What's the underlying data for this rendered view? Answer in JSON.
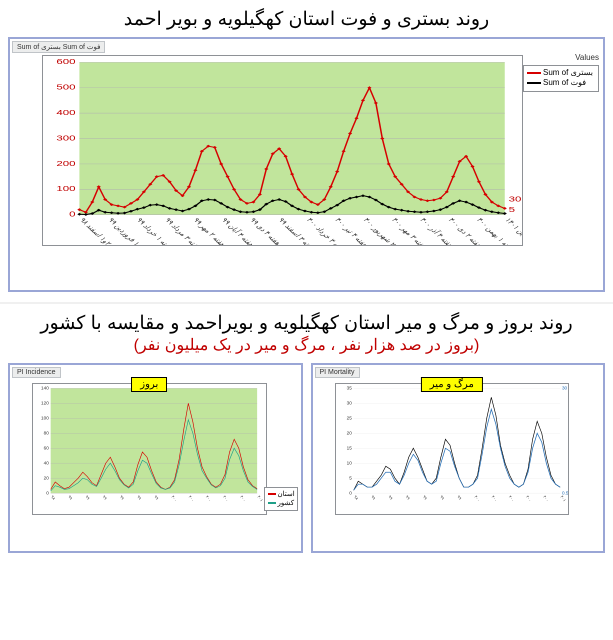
{
  "top": {
    "title": "روند بستری و فوت استان کهگیلویه و بویر احمد",
    "tab_text": "Sum of بستری  Sum of فوت",
    "values_label": "Values",
    "bg_color": "#c1e59c",
    "grid_color": "#b0b0b0",
    "y_left": {
      "min": 0,
      "max": 600,
      "ticks": [
        0,
        100,
        200,
        300,
        400,
        500,
        600
      ],
      "color": "#c00000",
      "fontsize": 9
    },
    "y_right": {
      "labels": [
        "5",
        "30"
      ],
      "positions": [
        0.03,
        0.1
      ],
      "color": "#c00000",
      "fontsize": 9
    },
    "x_labels": [
      "هفته ۲و۱ اسفند ۹۸",
      "هفته ۱ فروردین ۹۹",
      "هفته ۱ خرداد ۹۹",
      "هفته ۳ مرداد ۹۹",
      "هفته ۲ مهر ۹۹",
      "هفته ۴ آبان ۹۹",
      "هفته ۴ دی ۹۹",
      "هفته ۳ اسفند ۹۹",
      "هفته ۳ خرداد ۴۰۰",
      "هفته ۴ تیر ۴۰۰",
      "هفته ۲ شهریور ۴۰۰",
      "هفته ۳ مهر ۴۰۰",
      "هفته ۴ آذر ۴۰۰",
      "هفته ۲ دی ۴۰۰",
      "هفته ۱ بهمن ۴۰۰",
      "هفته ۱ فروردین ۱۴۰۱"
    ],
    "series": {
      "hosp": {
        "label": "Sum of بستری",
        "color": "#d60000",
        "marker": "diamond",
        "values": [
          20,
          10,
          50,
          110,
          60,
          40,
          35,
          30,
          45,
          60,
          90,
          120,
          150,
          155,
          130,
          95,
          75,
          110,
          175,
          250,
          270,
          265,
          200,
          150,
          100,
          60,
          45,
          50,
          80,
          180,
          240,
          260,
          230,
          160,
          100,
          70,
          50,
          40,
          60,
          110,
          170,
          250,
          320,
          380,
          450,
          500,
          440,
          300,
          200,
          150,
          120,
          90,
          70,
          60,
          55,
          58,
          65,
          90,
          150,
          210,
          230,
          190,
          130,
          80,
          50,
          35,
          25
        ]
      },
      "death": {
        "label": "Sum of فوت",
        "color": "#000000",
        "marker": "diamond",
        "values": [
          2,
          1,
          5,
          18,
          10,
          8,
          6,
          7,
          14,
          22,
          28,
          38,
          40,
          35,
          25,
          20,
          15,
          22,
          35,
          55,
          60,
          58,
          45,
          30,
          20,
          12,
          10,
          12,
          20,
          42,
          55,
          60,
          52,
          35,
          22,
          15,
          10,
          8,
          12,
          25,
          38,
          55,
          65,
          70,
          75,
          70,
          58,
          42,
          30,
          22,
          18,
          14,
          12,
          10,
          12,
          15,
          20,
          30,
          45,
          55,
          50,
          40,
          28,
          18,
          12,
          8,
          5
        ]
      }
    }
  },
  "bottom": {
    "title_black": "روند بروز و مرگ و میر استان کهگیلویه و بویراحمد و مقایسه با کشور",
    "title_red": "(بروز در صد هزار نفر ، مرگ و میر در یک میلیون نفر)",
    "left": {
      "box_title": "بروز",
      "bg_color": "#c1e59c",
      "grid_color": "#b0b0b0",
      "y_left": {
        "ticks": [
          0,
          20,
          40,
          60,
          80,
          100,
          120,
          140
        ],
        "max": 140,
        "color": "#333333",
        "fontsize": 7
      },
      "x_labels": [
        "۹۸",
        "۹۹",
        "۹۹",
        "۹۹",
        "۹۹",
        "۹۹",
        "۹۹",
        "۴۰۰",
        "۴۰۰",
        "۴۰۰",
        "۴۰۰",
        "۴۰۰",
        "۴۰۱"
      ],
      "legend": {
        "a": "استان",
        "b": "کشور"
      },
      "series": {
        "province": {
          "color": "#d60000",
          "values": [
            5,
            15,
            10,
            6,
            8,
            14,
            20,
            28,
            22,
            14,
            10,
            25,
            40,
            48,
            35,
            20,
            12,
            8,
            15,
            38,
            55,
            48,
            30,
            15,
            8,
            5,
            8,
            18,
            45,
            85,
            120,
            95,
            60,
            35,
            22,
            12,
            8,
            12,
            25,
            55,
            72,
            60,
            35,
            18,
            10,
            6
          ]
        },
        "country": {
          "color": "#1fa088",
          "values": [
            3,
            10,
            8,
            5,
            6,
            10,
            14,
            20,
            18,
            12,
            9,
            20,
            32,
            40,
            30,
            18,
            11,
            7,
            12,
            30,
            44,
            40,
            26,
            13,
            7,
            5,
            7,
            15,
            38,
            70,
            98,
            80,
            52,
            30,
            20,
            11,
            7,
            10,
            20,
            45,
            60,
            50,
            30,
            15,
            9,
            5
          ]
        }
      }
    },
    "right": {
      "box_title": "مرگ و میر",
      "bg_color": "#ffffff",
      "grid_color": "#e8e8e8",
      "y_left": {
        "ticks": [
          0,
          5,
          10,
          15,
          20,
          25,
          30,
          35
        ],
        "max": 35,
        "color": "#333333",
        "fontsize": 7
      },
      "y_right": {
        "labels": [
          "0.5",
          "30"
        ],
        "color": "#236db5",
        "fontsize": 7
      },
      "x_labels": [
        "۹۸",
        "۹۹",
        "۹۹",
        "۹۹",
        "۹۹",
        "۹۹",
        "۹۹",
        "۴۰۰",
        "۴۰۰",
        "۴۰۰",
        "۴۰۰",
        "۴۰۰",
        "۴۰۱"
      ],
      "series": {
        "province": {
          "color": "#000000",
          "values": [
            1,
            4,
            3,
            2,
            2,
            4,
            6,
            9,
            8,
            5,
            3,
            7,
            12,
            15,
            12,
            8,
            4,
            3,
            5,
            12,
            18,
            16,
            10,
            5,
            2,
            2,
            3,
            6,
            15,
            25,
            32,
            26,
            16,
            10,
            6,
            3,
            2,
            3,
            8,
            18,
            24,
            20,
            12,
            6,
            3,
            2
          ]
        },
        "country": {
          "color": "#236db5",
          "values": [
            1,
            3,
            3,
            2,
            2,
            3,
            5,
            7,
            7,
            4,
            3,
            6,
            10,
            13,
            11,
            7,
            4,
            3,
            4,
            10,
            15,
            14,
            9,
            5,
            2,
            2,
            3,
            5,
            13,
            22,
            28,
            23,
            15,
            9,
            5,
            3,
            2,
            3,
            7,
            15,
            20,
            17,
            10,
            5,
            3,
            2
          ]
        }
      }
    }
  }
}
